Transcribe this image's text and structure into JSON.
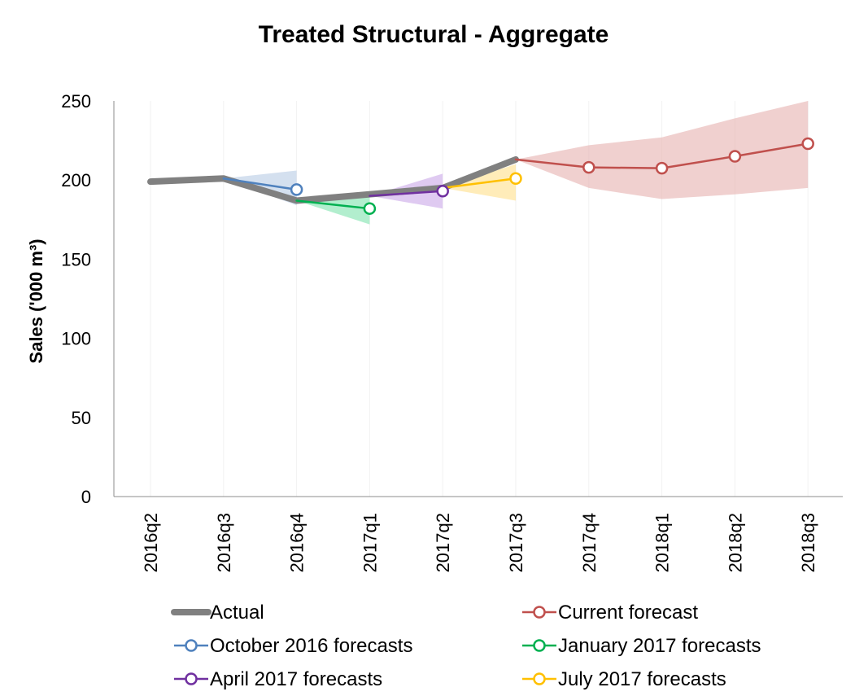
{
  "chart_data": {
    "type": "line",
    "title": "Treated Structural - Aggregate",
    "xlabel": "",
    "ylabel": "Sales ('000 m³)",
    "ylim": [
      0,
      250
    ],
    "yticks": [
      0,
      50,
      100,
      150,
      200,
      250
    ],
    "categories": [
      "2016q2",
      "2016q3",
      "2016q4",
      "2017q1",
      "2017q2",
      "2017q3",
      "2017q4",
      "2018q1",
      "2018q2",
      "2018q3"
    ],
    "grid": false,
    "legend_position": "bottom",
    "series": [
      {
        "name": "Actual",
        "color": "#808080",
        "style": "thick",
        "markers": false,
        "points": [
          {
            "x": "2016q2",
            "y": 199
          },
          {
            "x": "2016q3",
            "y": 201
          },
          {
            "x": "2016q4",
            "y": 187
          },
          {
            "x": "2017q1",
            "y": 191
          },
          {
            "x": "2017q2",
            "y": 195
          },
          {
            "x": "2017q3",
            "y": 213
          }
        ]
      },
      {
        "name": "Current forecast",
        "color": "#C0504D",
        "band_color": "#E6B0AF",
        "markers": true,
        "points": [
          {
            "x": "2017q3",
            "y": 213,
            "lo": 213,
            "hi": 213
          },
          {
            "x": "2017q4",
            "y": 208,
            "lo": 195,
            "hi": 222
          },
          {
            "x": "2018q1",
            "y": 207.5,
            "lo": 188,
            "hi": 227
          },
          {
            "x": "2018q2",
            "y": 215,
            "lo": 191,
            "hi": 239
          },
          {
            "x": "2018q3",
            "y": 223,
            "lo": 195,
            "hi": 250
          }
        ]
      },
      {
        "name": "October 2016 forecasts",
        "color": "#4F81BD",
        "band_color": "#B8CCE4",
        "markers": true,
        "points": [
          {
            "x": "2016q3",
            "y": 201,
            "lo": 201,
            "hi": 201
          },
          {
            "x": "2016q4",
            "y": 194,
            "lo": 184,
            "hi": 206
          }
        ]
      },
      {
        "name": "January 2017 forecasts",
        "color": "#00B050",
        "band_color": "#7FE3AE",
        "markers": true,
        "points": [
          {
            "x": "2016q4",
            "y": 187,
            "lo": 187,
            "hi": 187
          },
          {
            "x": "2017q1",
            "y": 182,
            "lo": 172,
            "hi": 193
          }
        ]
      },
      {
        "name": "April 2017 forecasts",
        "color": "#7030A0",
        "band_color": "#C9A7E8",
        "markers": true,
        "points": [
          {
            "x": "2017q1",
            "y": 190,
            "lo": 190,
            "hi": 190
          },
          {
            "x": "2017q2",
            "y": 193,
            "lo": 182,
            "hi": 204
          }
        ]
      },
      {
        "name": "July 2017 forecasts",
        "color": "#FFC000",
        "band_color": "#FFE08A",
        "markers": true,
        "points": [
          {
            "x": "2017q2",
            "y": 195,
            "lo": 195,
            "hi": 195
          },
          {
            "x": "2017q3",
            "y": 201,
            "lo": 187,
            "hi": 210
          }
        ]
      }
    ],
    "legend": [
      "Actual",
      "Current forecast",
      "October 2016 forecasts",
      "January 2017 forecasts",
      "April 2017 forecasts",
      "July 2017 forecasts"
    ]
  }
}
